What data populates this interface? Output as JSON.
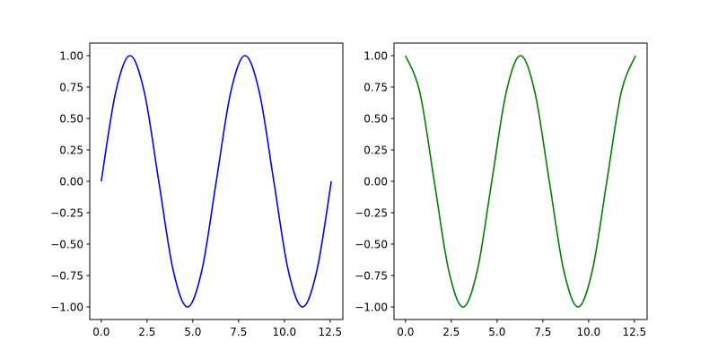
{
  "chart_data": [
    {
      "type": "line",
      "title": "",
      "xlabel": "",
      "ylabel": "",
      "xlim": [
        -0.628,
        13.195
      ],
      "ylim": [
        -1.1,
        1.1
      ],
      "xticks": [
        0.0,
        2.5,
        5.0,
        7.5,
        10.0,
        12.5
      ],
      "xtick_labels": [
        "0.0",
        "2.5",
        "5.0",
        "7.5",
        "10.0",
        "12.5"
      ],
      "yticks": [
        -1.0,
        -0.75,
        -0.5,
        -0.25,
        0.0,
        0.25,
        0.5,
        0.75,
        1.0
      ],
      "ytick_labels": [
        "−1.00",
        "−0.75",
        "−0.50",
        "−0.25",
        "0.00",
        "0.25",
        "0.50",
        "0.75",
        "1.00"
      ],
      "grid": false,
      "series": [
        {
          "color": "#0000ff",
          "x": [
            0.0,
            0.785,
            1.571,
            2.356,
            3.142,
            3.927,
            4.712,
            5.498,
            6.283,
            7.069,
            7.854,
            8.639,
            9.425,
            10.21,
            10.996,
            11.781,
            12.566
          ],
          "y": [
            0.0,
            0.707,
            1.0,
            0.707,
            0.0,
            -0.707,
            -1.0,
            -0.707,
            0.0,
            0.707,
            1.0,
            0.707,
            0.0,
            -0.707,
            -1.0,
            -0.707,
            0.0
          ]
        }
      ]
    },
    {
      "type": "line",
      "title": "",
      "xlabel": "",
      "ylabel": "",
      "xlim": [
        -0.628,
        13.195
      ],
      "ylim": [
        -1.1,
        1.1
      ],
      "xticks": [
        0.0,
        2.5,
        5.0,
        7.5,
        10.0,
        12.5
      ],
      "xtick_labels": [
        "0.0",
        "2.5",
        "5.0",
        "7.5",
        "10.0",
        "12.5"
      ],
      "yticks": [
        -1.0,
        -0.75,
        -0.5,
        -0.25,
        0.0,
        0.25,
        0.5,
        0.75,
        1.0
      ],
      "ytick_labels": [
        "−1.00",
        "−0.75",
        "−0.50",
        "−0.25",
        "0.00",
        "0.25",
        "0.50",
        "0.75",
        "1.00"
      ],
      "grid": false,
      "series": [
        {
          "color": "#008000",
          "x": [
            0.0,
            0.785,
            1.571,
            2.356,
            3.142,
            3.927,
            4.712,
            5.498,
            6.283,
            7.069,
            7.854,
            8.639,
            9.425,
            10.21,
            10.996,
            11.781,
            12.566
          ],
          "y": [
            1.0,
            0.707,
            0.0,
            -0.707,
            -1.0,
            -0.707,
            0.0,
            0.707,
            1.0,
            0.707,
            0.0,
            -0.707,
            -1.0,
            -0.707,
            0.0,
            0.707,
            1.0
          ]
        }
      ]
    }
  ]
}
